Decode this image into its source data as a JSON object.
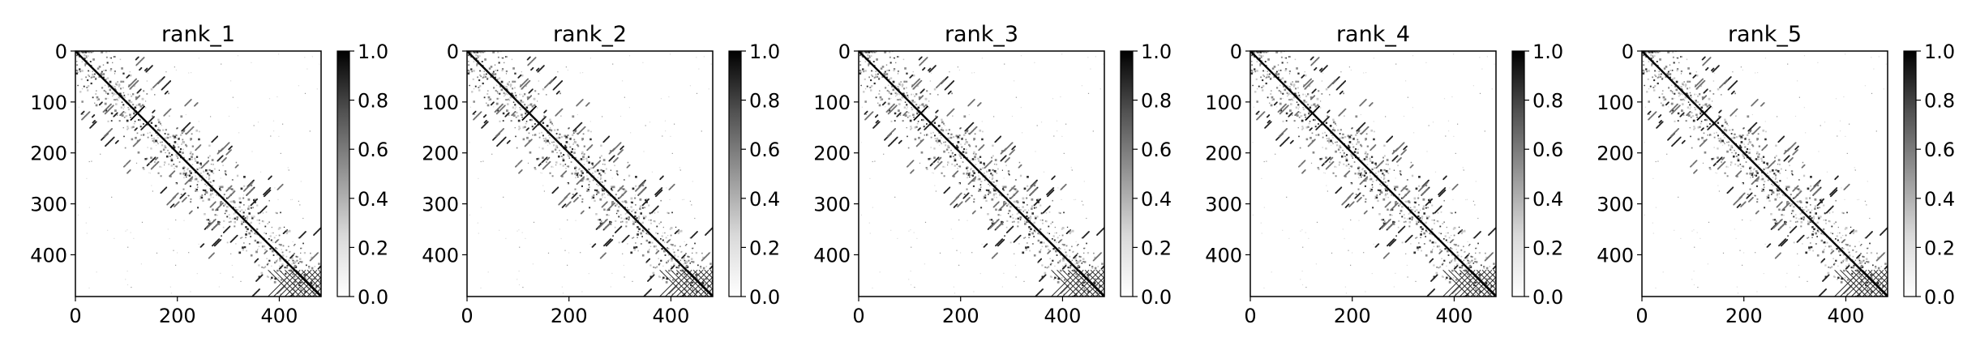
{
  "figure": {
    "background": "#ffffff",
    "colormap": "Greys"
  },
  "chart_data": [
    {
      "type": "heatmap",
      "title": "rank_1",
      "xlabel": "",
      "ylabel": "",
      "matrix_size": 482,
      "xlim": [
        0,
        482
      ],
      "ylim": [
        482,
        0
      ],
      "x_ticks": [
        0,
        200,
        400
      ],
      "y_ticks": [
        0,
        100,
        200,
        300,
        400
      ],
      "colorbar": {
        "vmin": 0.0,
        "vmax": 1.0,
        "ticks": [
          "0.0",
          "0.2",
          "0.4",
          "0.6",
          "0.8",
          "1.0"
        ]
      },
      "features": {
        "main_diagonal": true,
        "cross_mark_at": [
          122,
          122
        ],
        "bottom_right_lattice": [
          430,
          482
        ],
        "off_diagonal_contacts": "sparse"
      }
    },
    {
      "type": "heatmap",
      "title": "rank_2",
      "xlabel": "",
      "ylabel": "",
      "matrix_size": 482,
      "xlim": [
        0,
        482
      ],
      "ylim": [
        482,
        0
      ],
      "x_ticks": [
        0,
        200,
        400
      ],
      "y_ticks": [
        0,
        100,
        200,
        300,
        400
      ],
      "colorbar": {
        "vmin": 0.0,
        "vmax": 1.0,
        "ticks": [
          "0.0",
          "0.2",
          "0.4",
          "0.6",
          "0.8",
          "1.0"
        ]
      },
      "features": {
        "main_diagonal": true,
        "cross_mark_at": [
          122,
          122
        ],
        "bottom_right_lattice": [
          430,
          482
        ],
        "off_diagonal_contacts": "sparse"
      }
    },
    {
      "type": "heatmap",
      "title": "rank_3",
      "xlabel": "",
      "ylabel": "",
      "matrix_size": 482,
      "xlim": [
        0,
        482
      ],
      "ylim": [
        482,
        0
      ],
      "x_ticks": [
        0,
        200,
        400
      ],
      "y_ticks": [
        0,
        100,
        200,
        300,
        400
      ],
      "colorbar": {
        "vmin": 0.0,
        "vmax": 1.0,
        "ticks": [
          "0.0",
          "0.2",
          "0.4",
          "0.6",
          "0.8",
          "1.0"
        ]
      },
      "features": {
        "main_diagonal": true,
        "cross_mark_at": [
          122,
          122
        ],
        "bottom_right_lattice": [
          430,
          482
        ],
        "off_diagonal_contacts": "sparse"
      }
    },
    {
      "type": "heatmap",
      "title": "rank_4",
      "xlabel": "",
      "ylabel": "",
      "matrix_size": 482,
      "xlim": [
        0,
        482
      ],
      "ylim": [
        482,
        0
      ],
      "x_ticks": [
        0,
        200,
        400
      ],
      "y_ticks": [
        0,
        100,
        200,
        300,
        400
      ],
      "colorbar": {
        "vmin": 0.0,
        "vmax": 1.0,
        "ticks": [
          "0.0",
          "0.2",
          "0.4",
          "0.6",
          "0.8",
          "1.0"
        ]
      },
      "features": {
        "main_diagonal": true,
        "cross_mark_at": [
          122,
          122
        ],
        "bottom_right_lattice": [
          430,
          482
        ],
        "off_diagonal_contacts": "sparse"
      }
    },
    {
      "type": "heatmap",
      "title": "rank_5",
      "xlabel": "",
      "ylabel": "",
      "matrix_size": 482,
      "xlim": [
        0,
        482
      ],
      "ylim": [
        482,
        0
      ],
      "x_ticks": [
        0,
        200,
        400
      ],
      "y_ticks": [
        0,
        100,
        200,
        300,
        400
      ],
      "colorbar": {
        "vmin": 0.0,
        "vmax": 1.0,
        "ticks": [
          "0.0",
          "0.2",
          "0.4",
          "0.6",
          "0.8",
          "1.0"
        ]
      },
      "features": {
        "main_diagonal": true,
        "cross_mark_at": [
          122,
          122
        ],
        "bottom_right_lattice": [
          430,
          482
        ],
        "off_diagonal_contacts": "sparse"
      }
    }
  ]
}
